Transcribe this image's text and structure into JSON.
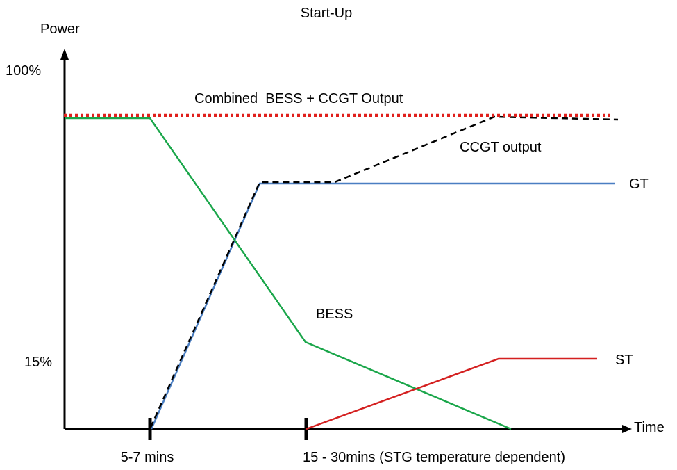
{
  "chart_data": {
    "type": "line",
    "title": "Start-Up",
    "ylabel": "Power",
    "xlabel": "Time",
    "y_tick_labels": [
      "100%",
      "15%"
    ],
    "x_markers": [
      "5-7 mins",
      "15 - 30mins (STG temperature dependent)"
    ],
    "series": [
      {
        "name": "Combined  BESS + CCGT Output",
        "color": "#e0201c",
        "style": "dotted"
      },
      {
        "name": "CCGT output",
        "color": "#000000",
        "style": "dashed"
      },
      {
        "name": "GT",
        "color": "#4a7ec2",
        "style": "solid"
      },
      {
        "name": "BESS",
        "color": "#1aa64a",
        "style": "solid"
      },
      {
        "name": "ST",
        "color": "#d42020",
        "style": "solid"
      }
    ]
  }
}
